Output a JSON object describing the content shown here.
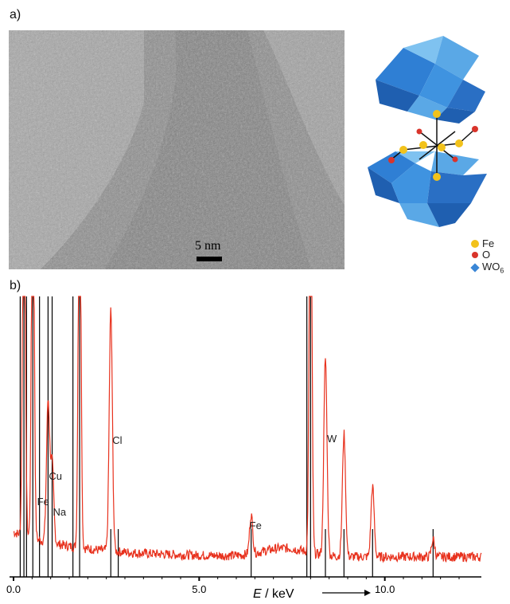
{
  "panels": {
    "a_label": "a)",
    "b_label": "b)"
  },
  "tem": {
    "scale_bar_label": "5 nm"
  },
  "structure_legend": [
    {
      "label": "Fe",
      "color": "#f2c21b",
      "shape": "circle"
    },
    {
      "label": "O",
      "color": "#d9342b",
      "shape": "circle"
    },
    {
      "label": "WO6",
      "color": "#3a86d6",
      "shape": "diamond"
    }
  ],
  "chart_data": {
    "type": "line",
    "xlabel_var": "E",
    "xlabel_unit": " / keV",
    "x_ticks": [
      "0.0",
      "5.0",
      "10.0"
    ],
    "xlim": [
      0,
      12.6
    ],
    "series_color": "#e8321e",
    "peak_labels": [
      {
        "text": "Cu",
        "x": 0.93
      },
      {
        "text": "Fe",
        "x": 0.7
      },
      {
        "text": "Na",
        "x": 1.04
      },
      {
        "text": "Cl",
        "x": 2.62
      },
      {
        "text": "Fe",
        "x": 6.4
      },
      {
        "text": "W",
        "x": 8.4
      }
    ],
    "reference_lines": [
      0.18,
      0.28,
      0.35,
      0.52,
      0.7,
      0.93,
      1.04,
      1.6,
      1.78,
      2.62,
      2.82,
      6.4,
      7.9,
      8.0,
      8.4,
      8.9,
      9.67,
      11.3
    ],
    "peaks": [
      {
        "x": 0.28,
        "height": 1.0
      },
      {
        "x": 0.52,
        "height": 1.0
      },
      {
        "x": 0.93,
        "height": 0.32
      },
      {
        "x": 1.04,
        "height": 0.18
      },
      {
        "x": 1.78,
        "height": 1.0
      },
      {
        "x": 2.62,
        "height": 0.55
      },
      {
        "x": 6.4,
        "height": 0.09
      },
      {
        "x": 8.0,
        "height": 1.0
      },
      {
        "x": 8.4,
        "height": 0.45
      },
      {
        "x": 8.9,
        "height": 0.28
      },
      {
        "x": 9.67,
        "height": 0.16
      },
      {
        "x": 11.3,
        "height": 0.04
      }
    ]
  }
}
